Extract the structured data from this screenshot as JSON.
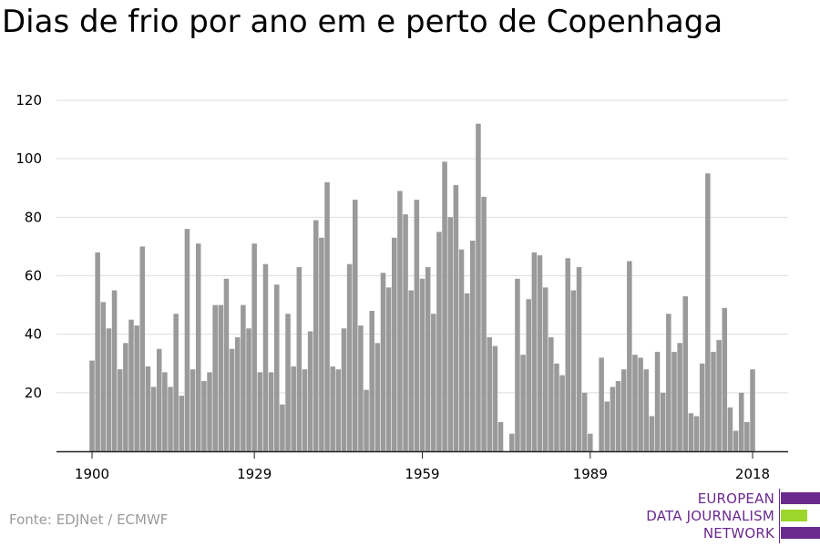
{
  "title": "Dias de frio por ano em e perto de Copenhaga",
  "source": "Fonte: EDJNet / ECMWF",
  "logo": {
    "line1": "EUROPEAN",
    "line2": "DATA JOURNALISM",
    "line3": "NETWORK",
    "colors": {
      "purple": "#6a2a8e",
      "green": "#9cd62c"
    }
  },
  "colors": {
    "bar": "#9a9a9a",
    "grid": "#dddddd",
    "axis": "#222222",
    "text": "#000000"
  },
  "chart_data": {
    "type": "bar",
    "xlabel": "",
    "ylabel": "",
    "x_ticks": [
      1900,
      1929,
      1959,
      1989,
      2018
    ],
    "y_ticks": [
      20,
      40,
      60,
      80,
      100,
      120
    ],
    "ylim": [
      0,
      120
    ],
    "xlim": [
      1900,
      2018
    ],
    "grid": true,
    "legend": "none",
    "years": [
      1900,
      1901,
      1902,
      1903,
      1904,
      1905,
      1906,
      1907,
      1908,
      1909,
      1910,
      1911,
      1912,
      1913,
      1914,
      1915,
      1916,
      1917,
      1918,
      1919,
      1920,
      1921,
      1922,
      1923,
      1924,
      1925,
      1926,
      1927,
      1928,
      1929,
      1930,
      1931,
      1932,
      1933,
      1934,
      1935,
      1936,
      1937,
      1938,
      1939,
      1940,
      1941,
      1942,
      1943,
      1944,
      1945,
      1946,
      1947,
      1948,
      1949,
      1950,
      1951,
      1952,
      1953,
      1954,
      1955,
      1956,
      1957,
      1958,
      1959,
      1960,
      1961,
      1962,
      1963,
      1964,
      1965,
      1966,
      1967,
      1968,
      1969,
      1970,
      1971,
      1972,
      1973,
      1974,
      1975,
      1976,
      1977,
      1978,
      1979,
      1980,
      1981,
      1982,
      1983,
      1984,
      1985,
      1986,
      1987,
      1988,
      1989,
      1990,
      1991,
      1992,
      1993,
      1994,
      1995,
      1996,
      1997,
      1998,
      1999,
      2000,
      2001,
      2002,
      2003,
      2004,
      2005,
      2006,
      2007,
      2008,
      2009,
      2010,
      2011,
      2012,
      2013,
      2014,
      2015,
      2016,
      2017,
      2018
    ],
    "values": [
      31,
      68,
      51,
      42,
      55,
      28,
      37,
      45,
      43,
      70,
      29,
      22,
      35,
      27,
      22,
      47,
      19,
      76,
      28,
      71,
      24,
      27,
      50,
      50,
      59,
      35,
      39,
      50,
      42,
      71,
      27,
      64,
      27,
      57,
      16,
      47,
      29,
      63,
      28,
      41,
      79,
      73,
      92,
      29,
      28,
      42,
      64,
      86,
      43,
      21,
      48,
      37,
      61,
      56,
      73,
      89,
      81,
      55,
      86,
      59,
      63,
      47,
      75,
      99,
      80,
      91,
      69,
      54,
      72,
      112,
      87,
      39,
      36,
      10,
      0,
      6,
      59,
      33,
      52,
      68,
      67,
      56,
      39,
      30,
      26,
      66,
      55,
      63,
      20,
      6,
      0,
      32,
      17,
      22,
      24,
      28,
      65,
      33,
      32,
      28,
      12,
      34,
      20,
      47,
      34,
      37,
      53,
      13,
      12,
      30,
      95,
      34,
      38,
      49,
      15,
      7,
      20,
      10,
      28
    ]
  }
}
